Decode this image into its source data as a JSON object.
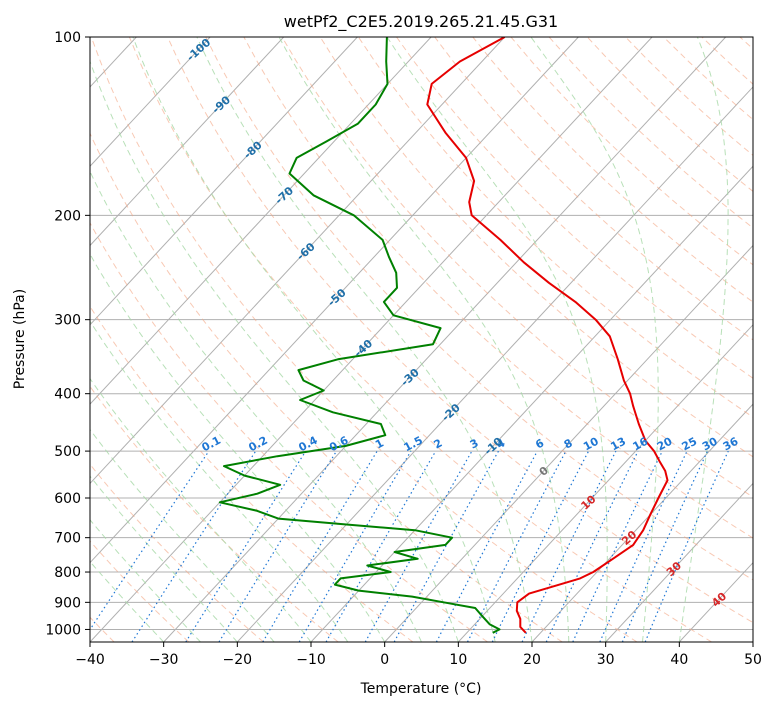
{
  "chart_data": {
    "type": "line",
    "title": "wetPf2_C2E5.2019.265.21.45.G31",
    "xlabel": "Temperature (°C)",
    "ylabel": "Pressure (hPa)",
    "xlim": [
      -40,
      50
    ],
    "ylim": [
      1050,
      100
    ],
    "y_scale": "log",
    "grid": true,
    "x_ticks": [
      -40,
      -30,
      -20,
      -10,
      0,
      10,
      20,
      30,
      40,
      50
    ],
    "x_tick_labels": [
      "−40",
      "−30",
      "−20",
      "−10",
      "0",
      "10",
      "20",
      "30",
      "40",
      "50"
    ],
    "y_ticks": [
      100,
      200,
      300,
      400,
      500,
      600,
      700,
      800,
      900,
      1000
    ],
    "y_tick_labels": [
      "100",
      "200",
      "300",
      "400",
      "500",
      "600",
      "700",
      "800",
      "900",
      "1000"
    ],
    "series": [
      {
        "color": "#e60000",
        "pressure": [
          1013,
          990,
          960,
          930,
          900,
          870,
          850,
          820,
          800,
          760,
          720,
          680,
          640,
          600,
          560,
          540,
          520,
          500,
          480,
          450,
          420,
          400,
          380,
          350,
          320,
          300,
          280,
          260,
          240,
          220,
          200,
          190,
          175,
          160,
          145,
          130,
          120,
          110,
          100
        ],
        "temperature": [
          18.0,
          16.5,
          15.5,
          14.0,
          13.0,
          13.5,
          15.5,
          18.5,
          19.5,
          20.5,
          21.5,
          21.0,
          20.0,
          19.0,
          18.0,
          16.5,
          14.5,
          12.5,
          10.0,
          7.0,
          4.0,
          2.0,
          -0.5,
          -4.0,
          -8.0,
          -12.0,
          -17.0,
          -23.0,
          -29.0,
          -35.0,
          -42.0,
          -44.0,
          -46.0,
          -50.0,
          -56.0,
          -62.0,
          -64.0,
          -63.0,
          -60.0
        ]
      },
      {
        "color": "#008000",
        "pressure": [
          1013,
          1000,
          980,
          950,
          920,
          900,
          880,
          860,
          840,
          820,
          800,
          780,
          760,
          740,
          720,
          700,
          680,
          665,
          650,
          630,
          610,
          590,
          570,
          550,
          530,
          510,
          490,
          470,
          450,
          430,
          410,
          395,
          380,
          365,
          350,
          330,
          310,
          295,
          280,
          265,
          250,
          235,
          220,
          200,
          185,
          170,
          160,
          150,
          140,
          130,
          120,
          110,
          100
        ],
        "temperature": [
          13.5,
          14.0,
          12.0,
          10.0,
          8.0,
          3.0,
          -2.0,
          -10.0,
          -14.0,
          -14.0,
          -8.0,
          -12.0,
          -6.0,
          -10.0,
          -4.0,
          -4.0,
          -10.0,
          -20.0,
          -30.0,
          -34.0,
          -40.0,
          -36.0,
          -34.0,
          -40.0,
          -44.0,
          -38.0,
          -30.0,
          -26.0,
          -28.0,
          -36.0,
          -42.0,
          -40.0,
          -44.0,
          -46.0,
          -42.0,
          -31.0,
          -32.0,
          -40.0,
          -43.0,
          -43.0,
          -45.0,
          -48.0,
          -51.0,
          -58.0,
          -66.0,
          -72.0,
          -73.0,
          -71.0,
          -69.0,
          -69.0,
          -70.0,
          -73.0,
          -76.0
        ]
      }
    ],
    "isotherm_labels": [
      "-100",
      "-90",
      "-80",
      "-70",
      "-60",
      "-50",
      "-40",
      "-30",
      "-20",
      "-10",
      "0",
      "10",
      "20",
      "30",
      "40"
    ],
    "mixing_ratio_labels": [
      "0.1",
      "0.2",
      "0.4",
      "0.6",
      "1",
      "1.5",
      "2",
      "3",
      "4",
      "6",
      "8",
      "10",
      "13",
      "16",
      "20",
      "25",
      "30",
      "36"
    ]
  },
  "colors": {
    "temperature": "#e60000",
    "dewpoint": "#008000",
    "isotherm_grid": "#b0b0b0",
    "dry_adiabat": "#f4a582",
    "moist_adiabat": "#a6d8a6",
    "mixing_ratio": "#1f77d4",
    "isotherm_label_cold": "#1f6fa8",
    "isotherm_label_warm": "#d62728"
  }
}
